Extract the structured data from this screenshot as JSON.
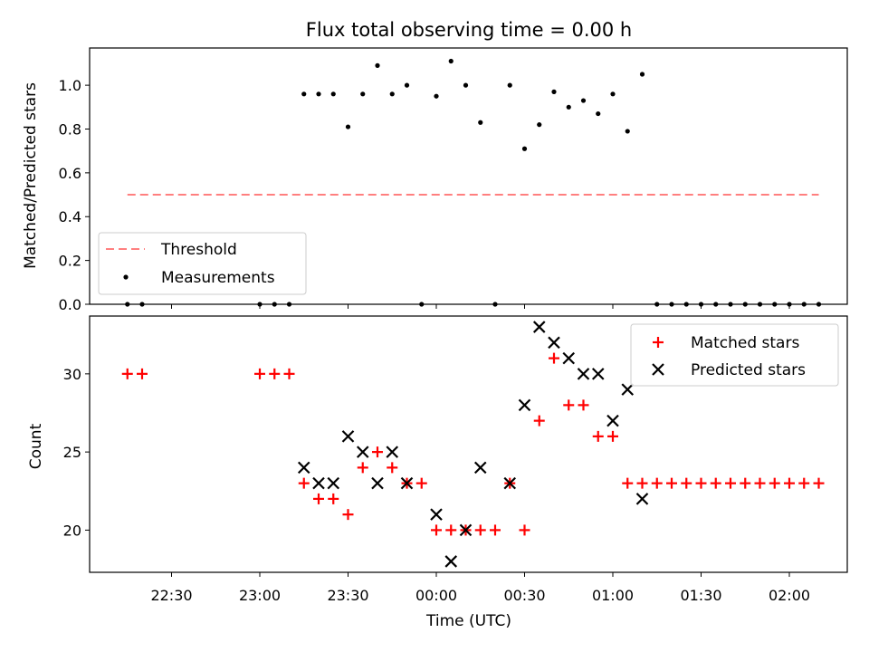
{
  "chart_data": [
    {
      "type": "scatter",
      "title": "Flux total observing time = 0.00 h",
      "ylabel": "Matched/Predicted stars",
      "xlabel": "",
      "ylim": [
        0,
        1.17
      ],
      "y_ticks": [
        "0.0",
        "0.2",
        "0.4",
        "0.6",
        "0.8",
        "1.0"
      ],
      "legend_position": "lower-left",
      "threshold": {
        "name": "Threshold",
        "value": 0.5,
        "x_range": [
          "22:15",
          "02:10"
        ],
        "color": "#ff7f7f"
      },
      "series": [
        {
          "name": "Measurements",
          "color": "#000000",
          "points": [
            [
              "22:15",
              0.0
            ],
            [
              "22:20",
              0.0
            ],
            [
              "23:00",
              0.0
            ],
            [
              "23:05",
              0.0
            ],
            [
              "23:10",
              0.0
            ],
            [
              "23:15",
              0.96
            ],
            [
              "23:20",
              0.96
            ],
            [
              "23:25",
              0.96
            ],
            [
              "23:30",
              0.81
            ],
            [
              "23:35",
              0.96
            ],
            [
              "23:40",
              1.09
            ],
            [
              "23:45",
              0.96
            ],
            [
              "23:50",
              1.0
            ],
            [
              "23:55",
              0.0
            ],
            [
              "00:00",
              0.95
            ],
            [
              "00:05",
              1.11
            ],
            [
              "00:10",
              1.0
            ],
            [
              "00:15",
              0.83
            ],
            [
              "00:20",
              0.0
            ],
            [
              "00:25",
              1.0
            ],
            [
              "00:30",
              0.71
            ],
            [
              "00:35",
              0.82
            ],
            [
              "00:40",
              0.97
            ],
            [
              "00:45",
              0.9
            ],
            [
              "00:50",
              0.93
            ],
            [
              "00:55",
              0.87
            ],
            [
              "01:00",
              0.96
            ],
            [
              "01:05",
              0.79
            ],
            [
              "01:10",
              1.05
            ],
            [
              "01:15",
              0.0
            ],
            [
              "01:20",
              0.0
            ],
            [
              "01:25",
              0.0
            ],
            [
              "01:30",
              0.0
            ],
            [
              "01:35",
              0.0
            ],
            [
              "01:40",
              0.0
            ],
            [
              "01:45",
              0.0
            ],
            [
              "01:50",
              0.0
            ],
            [
              "01:55",
              0.0
            ],
            [
              "02:00",
              0.0
            ],
            [
              "02:05",
              0.0
            ],
            [
              "02:10",
              0.0
            ]
          ]
        }
      ]
    },
    {
      "type": "scatter",
      "title": "",
      "ylabel": "Count",
      "xlabel": "Time (UTC)",
      "ylim": [
        17.3,
        33.7
      ],
      "y_ticks": [
        "20",
        "25",
        "30"
      ],
      "x_ticks": [
        "22:30",
        "23:00",
        "23:30",
        "00:00",
        "00:30",
        "01:00",
        "01:30",
        "02:00"
      ],
      "legend_position": "top-right",
      "series": [
        {
          "name": "Matched stars",
          "color": "#ff0000",
          "marker": "plus",
          "points": [
            [
              "22:15",
              30
            ],
            [
              "22:20",
              30
            ],
            [
              "23:00",
              30
            ],
            [
              "23:05",
              30
            ],
            [
              "23:10",
              30
            ],
            [
              "23:15",
              23
            ],
            [
              "23:20",
              22
            ],
            [
              "23:25",
              22
            ],
            [
              "23:30",
              21
            ],
            [
              "23:35",
              24
            ],
            [
              "23:40",
              25
            ],
            [
              "23:45",
              24
            ],
            [
              "23:50",
              23
            ],
            [
              "23:55",
              23
            ],
            [
              "00:00",
              20
            ],
            [
              "00:05",
              20
            ],
            [
              "00:10",
              20
            ],
            [
              "00:15",
              20
            ],
            [
              "00:20",
              20
            ],
            [
              "00:25",
              23
            ],
            [
              "00:30",
              20
            ],
            [
              "00:35",
              27
            ],
            [
              "00:40",
              31
            ],
            [
              "00:45",
              28
            ],
            [
              "00:50",
              28
            ],
            [
              "00:55",
              26
            ],
            [
              "01:00",
              26
            ],
            [
              "01:05",
              23
            ],
            [
              "01:10",
              23
            ],
            [
              "01:15",
              23
            ],
            [
              "01:20",
              23
            ],
            [
              "01:25",
              23
            ],
            [
              "01:30",
              23
            ],
            [
              "01:35",
              23
            ],
            [
              "01:40",
              23
            ],
            [
              "01:45",
              23
            ],
            [
              "01:50",
              23
            ],
            [
              "01:55",
              23
            ],
            [
              "02:00",
              23
            ],
            [
              "02:05",
              23
            ],
            [
              "02:10",
              23
            ]
          ]
        },
        {
          "name": "Predicted stars",
          "color": "#000000",
          "marker": "x",
          "points": [
            [
              "23:15",
              24
            ],
            [
              "23:20",
              23
            ],
            [
              "23:25",
              23
            ],
            [
              "23:30",
              26
            ],
            [
              "23:35",
              25
            ],
            [
              "23:40",
              23
            ],
            [
              "23:45",
              25
            ],
            [
              "23:50",
              23
            ],
            [
              "00:00",
              21
            ],
            [
              "00:05",
              18
            ],
            [
              "00:10",
              20
            ],
            [
              "00:15",
              24
            ],
            [
              "00:25",
              23
            ],
            [
              "00:30",
              28
            ],
            [
              "00:35",
              33
            ],
            [
              "00:40",
              32
            ],
            [
              "00:45",
              31
            ],
            [
              "00:50",
              30
            ],
            [
              "00:55",
              30
            ],
            [
              "01:00",
              27
            ],
            [
              "01:05",
              29
            ],
            [
              "01:10",
              22
            ]
          ]
        }
      ]
    }
  ]
}
